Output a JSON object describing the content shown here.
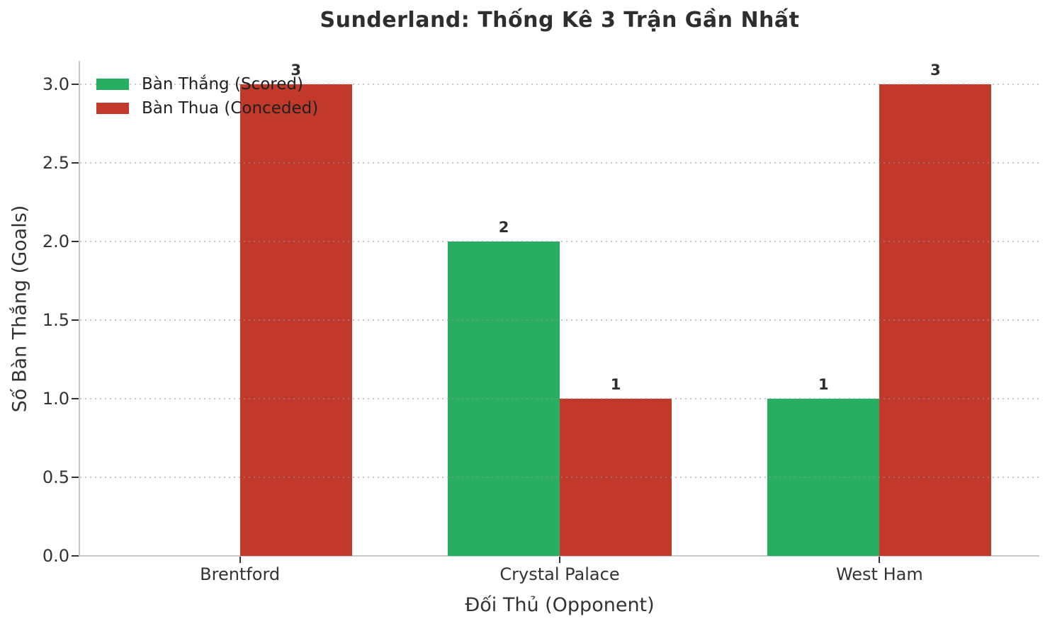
{
  "title": "Sunderland: Thống Kê 3 Trận Gần Nhất",
  "axes": {
    "xlabel": "Đối Thủ (Opponent)",
    "ylabel": "Số Bàn Thắng (Goals)"
  },
  "colors": {
    "scored": "#27ae60",
    "conceded": "#c0392b",
    "title_text": "#2e2e2e",
    "axis_text": "#333333",
    "spine": "#c9c9c9"
  },
  "chart_data": {
    "type": "bar",
    "title": "Sunderland: Thống Kê 3 Trận Gần Nhất",
    "xlabel": "Đối Thủ (Opponent)",
    "ylabel": "Số Bàn Thắng (Goals)",
    "categories": [
      "Brentford",
      "Crystal Palace",
      "West Ham"
    ],
    "series": [
      {
        "key": "scored",
        "name": "Bàn Thắng (Scored)",
        "color": "#27ae60",
        "values": [
          0,
          2,
          1
        ]
      },
      {
        "key": "conceded",
        "name": "Bàn Thua (Conceded)",
        "color": "#c0392b",
        "values": [
          3,
          1,
          3
        ]
      }
    ],
    "bar_value_labels": true,
    "yticks": [
      0.0,
      0.5,
      1.0,
      1.5,
      2.0,
      2.5,
      3.0
    ],
    "ytick_labels": [
      "0.0",
      "0.5",
      "1.0",
      "1.5",
      "2.0",
      "2.5",
      "3.0"
    ],
    "ylim": [
      0,
      3.15
    ],
    "grid": "horizontal dotted",
    "legend_position": "upper left",
    "legend_frame": false
  }
}
